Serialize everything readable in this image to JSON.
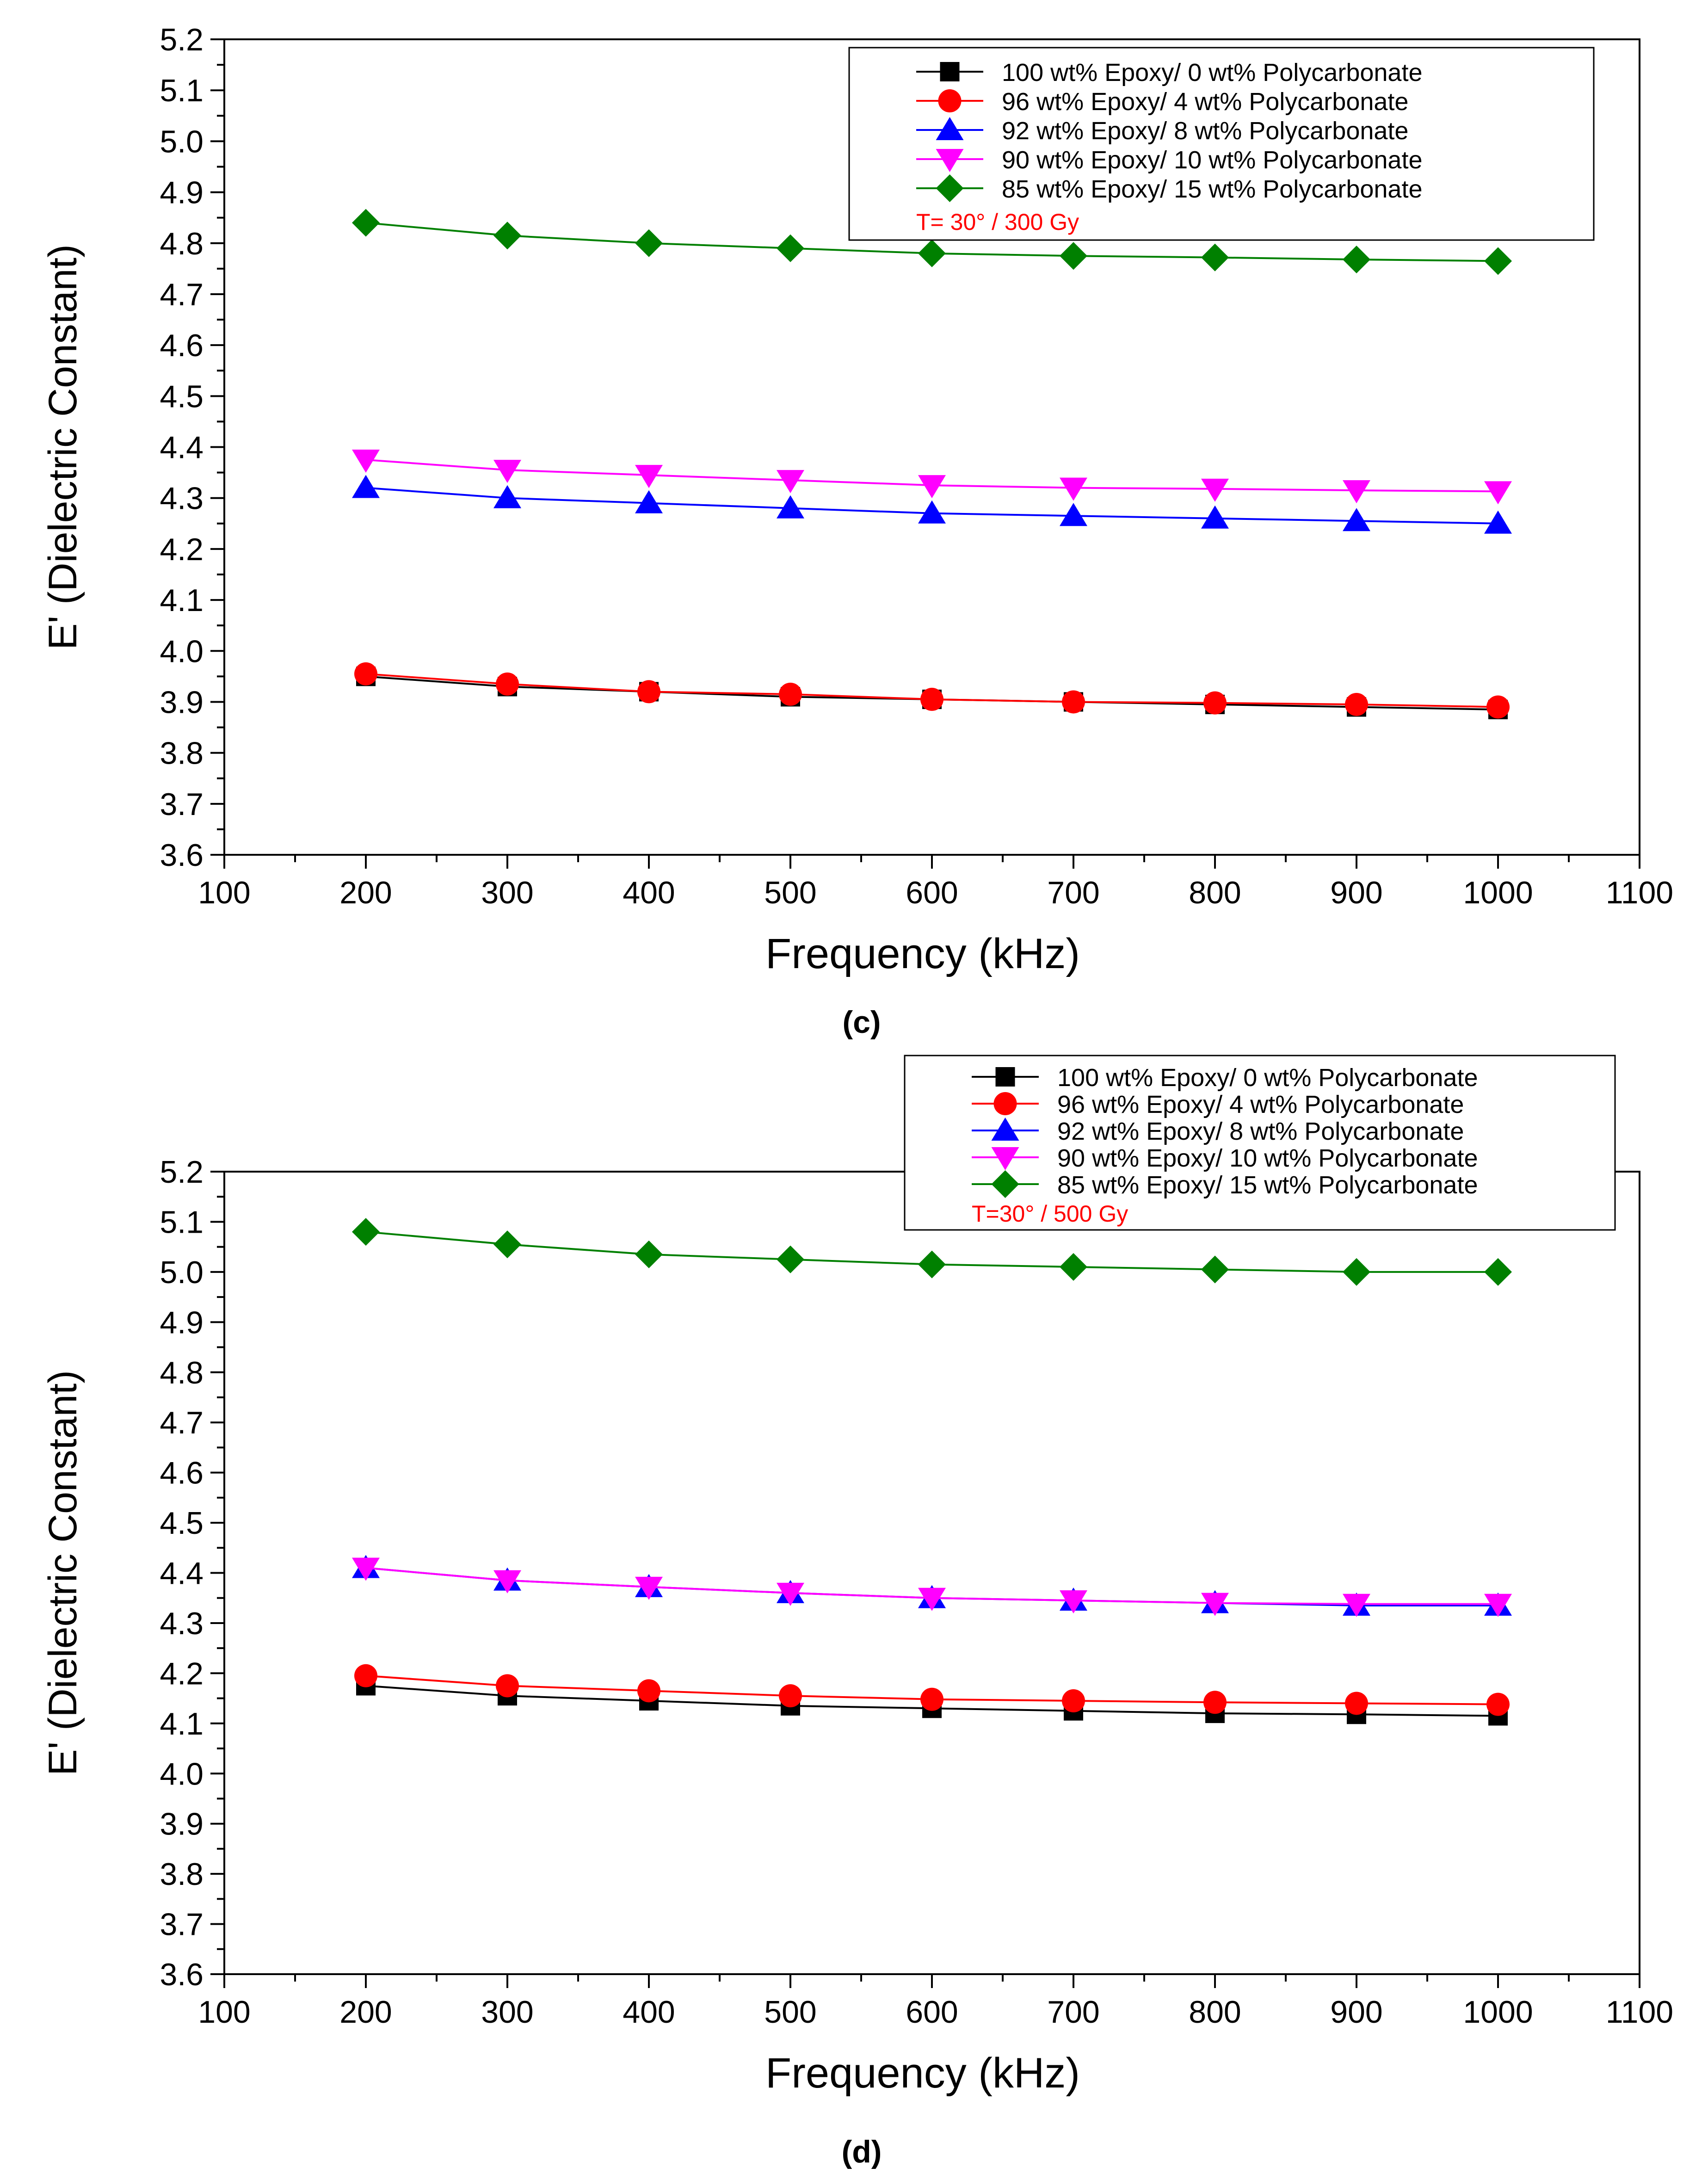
{
  "chart_data": [
    {
      "type": "line",
      "panel_label": "(c)",
      "xlabel": "Frequency (kHz)",
      "ylabel": "E' (Dielectric Constant)",
      "xlim": [
        100,
        1100
      ],
      "ylim": [
        3.6,
        5.2
      ],
      "x_ticks": [
        "100",
        "200",
        "300",
        "400",
        "500",
        "600",
        "700",
        "800",
        "900",
        "1000",
        "1100"
      ],
      "y_ticks": [
        "3.6",
        "3.7",
        "3.8",
        "3.9",
        "4.0",
        "4.1",
        "4.2",
        "4.3",
        "4.4",
        "4.5",
        "4.6",
        "4.7",
        "4.8",
        "4.9",
        "5.0",
        "5.1",
        "5.2"
      ],
      "annotation": "T= 30° / 300 Gy",
      "x": [
        200,
        300,
        400,
        500,
        600,
        700,
        800,
        900,
        1000
      ],
      "series": [
        {
          "name": "100 wt% Epoxy/ 0 wt% Polycarbonate",
          "color": "#000000",
          "marker": "square",
          "values": [
            3.95,
            3.93,
            3.92,
            3.91,
            3.905,
            3.9,
            3.895,
            3.89,
            3.885
          ]
        },
        {
          "name": "96 wt% Epoxy/ 4 wt% Polycarbonate",
          "color": "#ff0000",
          "marker": "circle",
          "values": [
            3.955,
            3.935,
            3.92,
            3.915,
            3.905,
            3.9,
            3.898,
            3.895,
            3.89
          ]
        },
        {
          "name": "92 wt% Epoxy/ 8 wt% Polycarbonate",
          "color": "#0000ff",
          "marker": "triangle-up",
          "values": [
            4.32,
            4.3,
            4.29,
            4.28,
            4.27,
            4.265,
            4.26,
            4.255,
            4.25
          ]
        },
        {
          "name": "90 wt% Epoxy/ 10 wt% Polycarbonate",
          "color": "#ff00ff",
          "marker": "triangle-down",
          "values": [
            4.375,
            4.355,
            4.345,
            4.335,
            4.325,
            4.32,
            4.318,
            4.315,
            4.313
          ]
        },
        {
          "name": "85 wt% Epoxy/ 15 wt% Polycarbonate",
          "color": "#008000",
          "marker": "diamond",
          "values": [
            4.84,
            4.815,
            4.8,
            4.79,
            4.78,
            4.775,
            4.772,
            4.768,
            4.765
          ]
        }
      ]
    },
    {
      "type": "line",
      "panel_label": "(d)",
      "xlabel": "Frequency (kHz)",
      "ylabel": "E' (Dielectric Constant)",
      "xlim": [
        100,
        1100
      ],
      "ylim": [
        3.6,
        5.2
      ],
      "x_ticks": [
        "100",
        "200",
        "300",
        "400",
        "500",
        "600",
        "700",
        "800",
        "900",
        "1000",
        "1100"
      ],
      "y_ticks": [
        "3.6",
        "3.7",
        "3.8",
        "3.9",
        "4.0",
        "4.1",
        "4.2",
        "4.3",
        "4.4",
        "4.5",
        "4.6",
        "4.7",
        "4.8",
        "4.9",
        "5.0",
        "5.1",
        "5.2"
      ],
      "annotation": "T=30° / 500 Gy",
      "x": [
        200,
        300,
        400,
        500,
        600,
        700,
        800,
        900,
        1000
      ],
      "series": [
        {
          "name": "100 wt% Epoxy/ 0 wt% Polycarbonate",
          "color": "#000000",
          "marker": "square",
          "values": [
            4.175,
            4.155,
            4.145,
            4.135,
            4.13,
            4.125,
            4.12,
            4.118,
            4.115
          ]
        },
        {
          "name": "96 wt% Epoxy/ 4 wt% Polycarbonate",
          "color": "#ff0000",
          "marker": "circle",
          "values": [
            4.195,
            4.175,
            4.165,
            4.155,
            4.148,
            4.145,
            4.142,
            4.14,
            4.138
          ]
        },
        {
          "name": "92 wt% Epoxy/ 8 wt% Polycarbonate",
          "color": "#0000ff",
          "marker": "triangle-up",
          "values": [
            4.41,
            4.385,
            4.372,
            4.36,
            4.35,
            4.345,
            4.34,
            4.335,
            4.335
          ]
        },
        {
          "name": "90 wt% Epoxy/ 10 wt% Polycarbonate",
          "color": "#ff00ff",
          "marker": "triangle-down",
          "values": [
            4.41,
            4.385,
            4.372,
            4.36,
            4.35,
            4.345,
            4.34,
            4.338,
            4.338
          ]
        },
        {
          "name": "85 wt% Epoxy/ 15 wt% Polycarbonate",
          "color": "#008000",
          "marker": "diamond",
          "values": [
            5.08,
            5.055,
            5.035,
            5.025,
            5.015,
            5.01,
            5.005,
            5.0,
            5.0
          ]
        }
      ]
    }
  ]
}
